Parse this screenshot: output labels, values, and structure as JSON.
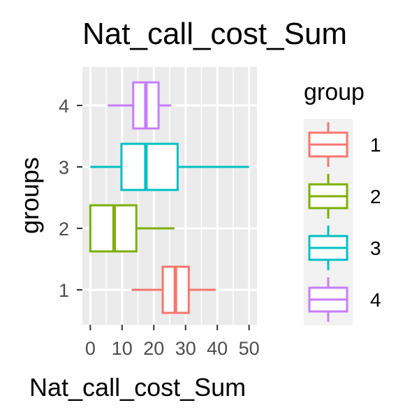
{
  "chart_data": {
    "type": "boxplot",
    "title": "Nat_call_cost_Sum",
    "xlabel": "Nat_call_cost_Sum",
    "ylabel": "groups",
    "xlim": [
      -2.5,
      52.5
    ],
    "xticks": [
      0,
      10,
      20,
      30,
      40,
      50
    ],
    "xtick_labels": [
      "0",
      "10",
      "20",
      "30",
      "40",
      "50"
    ],
    "categories": [
      "1",
      "2",
      "3",
      "4"
    ],
    "orientation": "horizontal",
    "grid": true,
    "legend": {
      "title": "group",
      "position": "right",
      "entries": [
        "1",
        "2",
        "3",
        "4"
      ]
    },
    "series": [
      {
        "name": "1",
        "color": "#F8766D",
        "whisker_low": 13,
        "q1": 22.8,
        "median": 26.8,
        "q3": 31,
        "whisker_high": 39.5
      },
      {
        "name": "2",
        "color": "#7CAE00",
        "whisker_low": 0,
        "q1": 0,
        "median": 7.5,
        "q3": 14.5,
        "whisker_high": 26.5
      },
      {
        "name": "3",
        "color": "#00BFC4",
        "whisker_low": 0,
        "q1": 9.8,
        "median": 17.5,
        "q3": 27.5,
        "whisker_high": 50
      },
      {
        "name": "4",
        "color": "#C77CFF",
        "whisker_low": 5.5,
        "q1": 13.5,
        "median": 17.5,
        "q3": 21.5,
        "whisker_high": 25.5
      }
    ]
  }
}
